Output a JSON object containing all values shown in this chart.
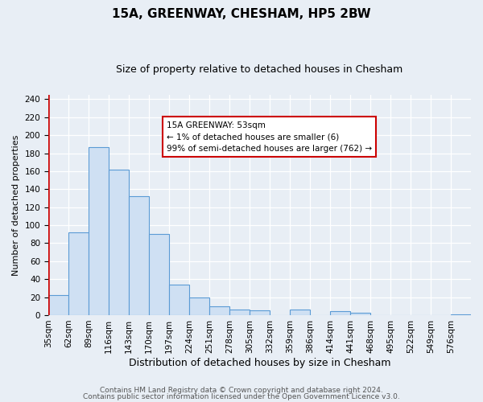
{
  "title": "15A, GREENWAY, CHESHAM, HP5 2BW",
  "subtitle": "Size of property relative to detached houses in Chesham",
  "xlabel": "Distribution of detached houses by size in Chesham",
  "ylabel": "Number of detached properties",
  "bin_labels": [
    "35sqm",
    "62sqm",
    "89sqm",
    "116sqm",
    "143sqm",
    "170sqm",
    "197sqm",
    "224sqm",
    "251sqm",
    "278sqm",
    "305sqm",
    "332sqm",
    "359sqm",
    "386sqm",
    "414sqm",
    "441sqm",
    "468sqm",
    "495sqm",
    "522sqm",
    "549sqm",
    "576sqm"
  ],
  "bar_heights": [
    22,
    92,
    187,
    162,
    132,
    90,
    34,
    20,
    10,
    6,
    5,
    0,
    6,
    0,
    4,
    3,
    0,
    0,
    0,
    0,
    1
  ],
  "bar_color_fill": "#cfe0f3",
  "bar_color_edge": "#5b9bd5",
  "highlight_color": "#cc0000",
  "annotation_title": "15A GREENWAY: 53sqm",
  "annotation_line1": "← 1% of detached houses are smaller (6)",
  "annotation_line2": "99% of semi-detached houses are larger (762) →",
  "annotation_box_color": "#cc0000",
  "ylim": [
    0,
    245
  ],
  "yticks": [
    0,
    20,
    40,
    60,
    80,
    100,
    120,
    140,
    160,
    180,
    200,
    220,
    240
  ],
  "footer_line1": "Contains HM Land Registry data © Crown copyright and database right 2024.",
  "footer_line2": "Contains public sector information licensed under the Open Government Licence v3.0.",
  "bg_color": "#e8eef5",
  "plot_bg_color": "#e8eef5",
  "title_fontsize": 11,
  "subtitle_fontsize": 9,
  "xlabel_fontsize": 9,
  "ylabel_fontsize": 8,
  "tick_fontsize": 7.5,
  "footer_fontsize": 6.5
}
